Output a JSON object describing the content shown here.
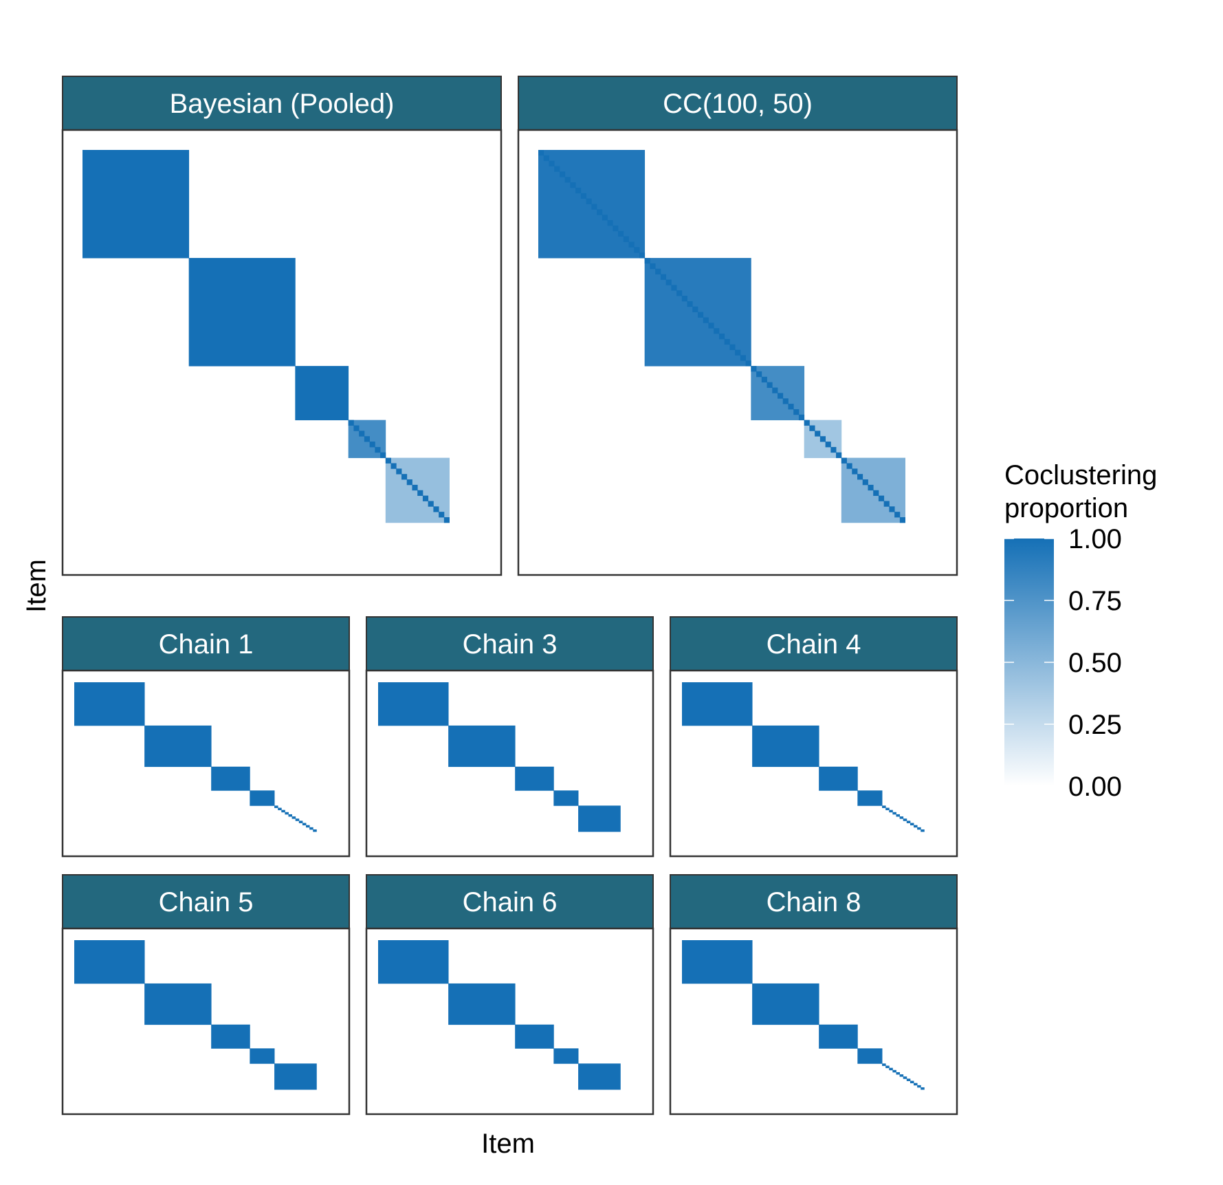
{
  "colors": {
    "strip_fill": "#23687E",
    "strip_text": "#FFFFFF",
    "panel_border": "#333333",
    "high": "#1570B6",
    "low": "#FFFFFF",
    "text": "#000000"
  },
  "chart_data": {
    "type": "heatmap",
    "title": "",
    "xlabel": "Item",
    "ylabel": "Item",
    "legend": {
      "title_lines": [
        "Coclustering",
        "proportion"
      ],
      "ticks": [
        "1.00",
        "0.75",
        "0.50",
        "0.25",
        "0.00"
      ],
      "tick_values": [
        1.0,
        0.75,
        0.5,
        0.25,
        0.0
      ],
      "range": [
        0,
        1
      ],
      "placement": "right"
    },
    "panels": [
      {
        "label": "Bayesian (Pooled)",
        "n_items": 75,
        "blocks": [
          {
            "start": 0,
            "size": 20,
            "value": 1.0
          },
          {
            "start": 20,
            "size": 20,
            "value": 1.0
          },
          {
            "start": 40,
            "size": 10,
            "value": 1.0
          },
          {
            "start": 50,
            "size": 7,
            "value": 0.8,
            "diagonal": 1.0
          },
          {
            "start": 57,
            "size": 12,
            "value": 0.45,
            "diagonal": 1.0
          }
        ]
      },
      {
        "label": "CC(100, 50)",
        "n_items": 75,
        "blocks": [
          {
            "start": 0,
            "size": 20,
            "value": 0.95,
            "diagonal": 1.0
          },
          {
            "start": 20,
            "size": 20,
            "value": 0.92,
            "diagonal": 1.0
          },
          {
            "start": 40,
            "size": 10,
            "value": 0.8,
            "diagonal": 1.0
          },
          {
            "start": 50,
            "size": 7,
            "value": 0.4,
            "diagonal": 1.0
          },
          {
            "start": 57,
            "size": 12,
            "value": 0.55,
            "diagonal": 1.0
          }
        ]
      },
      {
        "label": "Chain 1",
        "n_items": 75,
        "blocks": [
          {
            "start": 0,
            "size": 20,
            "value": 1.0
          },
          {
            "start": 20,
            "size": 19,
            "value": 1.0
          },
          {
            "start": 39,
            "size": 11,
            "value": 1.0
          },
          {
            "start": 50,
            "size": 7,
            "value": 1.0
          },
          {
            "start": 57,
            "size": 1,
            "value": 1.0
          },
          {
            "start": 58,
            "size": 1,
            "value": 1.0
          },
          {
            "start": 59,
            "size": 1,
            "value": 1.0
          },
          {
            "start": 60,
            "size": 1,
            "value": 1.0
          },
          {
            "start": 61,
            "size": 1,
            "value": 1.0
          },
          {
            "start": 62,
            "size": 1,
            "value": 1.0
          },
          {
            "start": 63,
            "size": 1,
            "value": 1.0
          },
          {
            "start": 64,
            "size": 1,
            "value": 1.0
          },
          {
            "start": 65,
            "size": 1,
            "value": 1.0
          },
          {
            "start": 66,
            "size": 1,
            "value": 1.0
          },
          {
            "start": 67,
            "size": 1,
            "value": 1.0
          },
          {
            "start": 68,
            "size": 1,
            "value": 1.0
          }
        ]
      },
      {
        "label": "Chain 3",
        "n_items": 75,
        "blocks": [
          {
            "start": 0,
            "size": 20,
            "value": 1.0
          },
          {
            "start": 20,
            "size": 19,
            "value": 1.0
          },
          {
            "start": 39,
            "size": 11,
            "value": 1.0
          },
          {
            "start": 50,
            "size": 7,
            "value": 1.0
          },
          {
            "start": 57,
            "size": 12,
            "value": 1.0
          }
        ]
      },
      {
        "label": "Chain 4",
        "n_items": 75,
        "blocks": [
          {
            "start": 0,
            "size": 20,
            "value": 1.0
          },
          {
            "start": 20,
            "size": 19,
            "value": 1.0
          },
          {
            "start": 39,
            "size": 11,
            "value": 1.0
          },
          {
            "start": 50,
            "size": 7,
            "value": 1.0
          },
          {
            "start": 57,
            "size": 1,
            "value": 1.0
          },
          {
            "start": 58,
            "size": 1,
            "value": 1.0
          },
          {
            "start": 59,
            "size": 1,
            "value": 1.0
          },
          {
            "start": 60,
            "size": 1,
            "value": 1.0
          },
          {
            "start": 61,
            "size": 1,
            "value": 1.0
          },
          {
            "start": 62,
            "size": 1,
            "value": 1.0
          },
          {
            "start": 63,
            "size": 1,
            "value": 1.0
          },
          {
            "start": 64,
            "size": 1,
            "value": 1.0
          },
          {
            "start": 65,
            "size": 1,
            "value": 1.0
          },
          {
            "start": 66,
            "size": 1,
            "value": 1.0
          },
          {
            "start": 67,
            "size": 1,
            "value": 1.0
          },
          {
            "start": 68,
            "size": 1,
            "value": 1.0
          }
        ]
      },
      {
        "label": "Chain 5",
        "n_items": 75,
        "blocks": [
          {
            "start": 0,
            "size": 20,
            "value": 1.0
          },
          {
            "start": 20,
            "size": 19,
            "value": 1.0
          },
          {
            "start": 39,
            "size": 11,
            "value": 1.0
          },
          {
            "start": 50,
            "size": 7,
            "value": 1.0
          },
          {
            "start": 57,
            "size": 12,
            "value": 1.0
          }
        ]
      },
      {
        "label": "Chain 6",
        "n_items": 75,
        "blocks": [
          {
            "start": 0,
            "size": 20,
            "value": 1.0
          },
          {
            "start": 20,
            "size": 19,
            "value": 1.0
          },
          {
            "start": 39,
            "size": 11,
            "value": 1.0
          },
          {
            "start": 50,
            "size": 7,
            "value": 1.0
          },
          {
            "start": 57,
            "size": 12,
            "value": 1.0
          }
        ]
      },
      {
        "label": "Chain 8",
        "n_items": 75,
        "blocks": [
          {
            "start": 0,
            "size": 20,
            "value": 1.0
          },
          {
            "start": 20,
            "size": 19,
            "value": 1.0
          },
          {
            "start": 39,
            "size": 11,
            "value": 1.0
          },
          {
            "start": 50,
            "size": 7,
            "value": 1.0
          },
          {
            "start": 57,
            "size": 1,
            "value": 1.0
          },
          {
            "start": 58,
            "size": 1,
            "value": 1.0
          },
          {
            "start": 59,
            "size": 1,
            "value": 1.0
          },
          {
            "start": 60,
            "size": 1,
            "value": 1.0
          },
          {
            "start": 61,
            "size": 1,
            "value": 1.0
          },
          {
            "start": 62,
            "size": 1,
            "value": 1.0
          },
          {
            "start": 63,
            "size": 1,
            "value": 1.0
          },
          {
            "start": 64,
            "size": 1,
            "value": 1.0
          },
          {
            "start": 65,
            "size": 1,
            "value": 1.0
          },
          {
            "start": 66,
            "size": 1,
            "value": 1.0
          },
          {
            "start": 67,
            "size": 1,
            "value": 1.0
          },
          {
            "start": 68,
            "size": 1,
            "value": 1.0
          }
        ]
      }
    ]
  }
}
